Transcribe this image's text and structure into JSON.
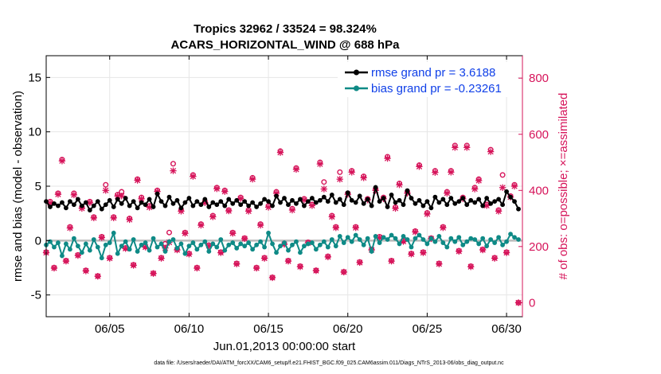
{
  "chart_data": {
    "type": "line",
    "title_line1": "Tropics 32962 / 33524 = 98.324%",
    "title_line2": "ACARS_HORIZONTAL_WIND @ 688 hPa",
    "xlabel": "Jun.01,2013 00:00:00 start",
    "ylabel_left": "rmse and bias (model - observation)",
    "ylabel_right": "# of obs: o=possible; ×=assimilated",
    "footnote": "data file: /Users/raeder/DAI/ATM_forcXX/CAM6_setup/f.e21.FHIST_BGC.f09_025.CAM6assim.011/Diags_NTrS_2013-06/obs_diag_output.nc",
    "x_range": [
      1.0,
      31.0
    ],
    "x_ticks": [
      5,
      10,
      15,
      20,
      25,
      30
    ],
    "x_tick_labels": [
      "06/05",
      "06/10",
      "06/15",
      "06/20",
      "06/25",
      "06/30"
    ],
    "ylim_left": [
      -7,
      17
    ],
    "y_ticks_left": [
      -5,
      0,
      5,
      10,
      15
    ],
    "ylim_right": [
      -50,
      880
    ],
    "y_ticks_right": [
      0,
      200,
      400,
      600,
      800
    ],
    "zero_line": 0,
    "legend_position": "top-right",
    "colors": {
      "rmse": "#000000",
      "bias": "#0e8a86",
      "obs": "#d6145a",
      "zero": "#bbbbbb",
      "grid": "#e6e6e6",
      "legend_text": "#1040e8"
    },
    "series": [
      {
        "name": "rmse grand pr = 3.6188",
        "key": "rmse",
        "x": [
          1.0,
          1.25,
          1.5,
          1.75,
          2.0,
          2.25,
          2.5,
          2.75,
          3.0,
          3.25,
          3.5,
          3.75,
          4.0,
          4.25,
          4.5,
          4.75,
          5.0,
          5.25,
          5.5,
          5.75,
          6.0,
          6.25,
          6.5,
          6.75,
          7.0,
          7.25,
          7.5,
          7.75,
          8.0,
          8.25,
          8.5,
          8.75,
          9.0,
          9.25,
          9.5,
          9.75,
          10.0,
          10.25,
          10.5,
          10.75,
          11.0,
          11.25,
          11.5,
          11.75,
          12.0,
          12.25,
          12.5,
          12.75,
          13.0,
          13.25,
          13.5,
          13.75,
          14.0,
          14.25,
          14.5,
          14.75,
          15.0,
          15.25,
          15.5,
          15.75,
          16.0,
          16.25,
          16.5,
          16.75,
          17.0,
          17.25,
          17.5,
          17.75,
          18.0,
          18.25,
          18.5,
          18.75,
          19.0,
          19.25,
          19.5,
          19.75,
          20.0,
          20.25,
          20.5,
          20.75,
          21.0,
          21.25,
          21.5,
          21.75,
          22.0,
          22.25,
          22.5,
          22.75,
          23.0,
          23.25,
          23.5,
          23.75,
          24.0,
          24.25,
          24.5,
          24.75,
          25.0,
          25.25,
          25.5,
          25.75,
          26.0,
          26.25,
          26.5,
          26.75,
          27.0,
          27.25,
          27.5,
          27.75,
          28.0,
          28.25,
          28.5,
          28.75,
          29.0,
          29.25,
          29.5,
          29.75,
          30.0,
          30.25,
          30.5,
          30.75
        ],
        "values": [
          3.6,
          3.1,
          3.4,
          3.2,
          3.5,
          3.0,
          3.6,
          3.3,
          3.8,
          3.2,
          3.5,
          2.8,
          3.2,
          3.6,
          2.9,
          3.3,
          3.7,
          3.1,
          3.8,
          3.4,
          3.9,
          3.2,
          3.6,
          3.0,
          3.5,
          3.3,
          3.8,
          3.1,
          4.3,
          3.6,
          3.2,
          4.0,
          3.4,
          3.7,
          3.0,
          3.5,
          3.9,
          3.2,
          3.6,
          3.3,
          3.8,
          3.1,
          3.5,
          3.3,
          3.6,
          3.2,
          3.8,
          3.4,
          3.7,
          3.3,
          3.6,
          3.2,
          3.5,
          3.1,
          3.4,
          3.8,
          3.6,
          3.2,
          4.1,
          3.5,
          3.9,
          3.3,
          3.7,
          3.4,
          3.8,
          3.2,
          3.6,
          3.9,
          3.5,
          3.7,
          4.0,
          3.6,
          4.2,
          3.5,
          3.8,
          3.3,
          4.4,
          3.7,
          3.5,
          4.1,
          3.4,
          3.8,
          3.2,
          4.9,
          3.6,
          3.9,
          3.1,
          4.2,
          3.5,
          3.7,
          3.3,
          4.6,
          3.9,
          3.4,
          3.7,
          3.2,
          3.6,
          3.0,
          4.0,
          3.5,
          3.8,
          3.3,
          3.9,
          3.4,
          3.6,
          3.9,
          3.3,
          3.7,
          3.5,
          3.8,
          3.2,
          3.9,
          3.4,
          3.6,
          3.8,
          3.3,
          4.5,
          4.0,
          3.6,
          2.9
        ]
      },
      {
        "name": "bias grand pr = -0.23261",
        "key": "bias",
        "x": [
          1.0,
          1.25,
          1.5,
          1.75,
          2.0,
          2.25,
          2.5,
          2.75,
          3.0,
          3.25,
          3.5,
          3.75,
          4.0,
          4.25,
          4.5,
          4.75,
          5.0,
          5.25,
          5.5,
          5.75,
          6.0,
          6.25,
          6.5,
          6.75,
          7.0,
          7.25,
          7.5,
          7.75,
          8.0,
          8.25,
          8.5,
          8.75,
          9.0,
          9.25,
          9.5,
          9.75,
          10.0,
          10.25,
          10.5,
          10.75,
          11.0,
          11.25,
          11.5,
          11.75,
          12.0,
          12.25,
          12.5,
          12.75,
          13.0,
          13.25,
          13.5,
          13.75,
          14.0,
          14.25,
          14.5,
          14.75,
          15.0,
          15.25,
          15.5,
          15.75,
          16.0,
          16.25,
          16.5,
          16.75,
          17.0,
          17.25,
          17.5,
          17.75,
          18.0,
          18.25,
          18.5,
          18.75,
          19.0,
          19.25,
          19.5,
          19.75,
          20.0,
          20.25,
          20.5,
          20.75,
          21.0,
          21.25,
          21.5,
          21.75,
          22.0,
          22.25,
          22.5,
          22.75,
          23.0,
          23.25,
          23.5,
          23.75,
          24.0,
          24.25,
          24.5,
          24.75,
          25.0,
          25.25,
          25.5,
          25.75,
          26.0,
          26.25,
          26.5,
          26.75,
          27.0,
          27.25,
          27.5,
          27.75,
          28.0,
          28.25,
          28.5,
          28.75,
          29.0,
          29.25,
          29.5,
          29.75,
          30.0,
          30.25,
          30.5,
          30.75
        ],
        "values": [
          -0.4,
          -0.1,
          -0.6,
          -0.2,
          -1.4,
          -0.3,
          -0.8,
          0.2,
          -0.5,
          -1.1,
          -0.3,
          -0.9,
          0.1,
          -0.6,
          -1.6,
          -0.4,
          -0.2,
          0.7,
          -1.2,
          -0.5,
          -0.1,
          -0.8,
          0.1,
          -1.0,
          -0.4,
          -0.2,
          -0.9,
          0.2,
          -0.6,
          -0.3,
          -1.0,
          -0.1,
          0.1,
          -0.7,
          -0.3,
          -1.2,
          -0.5,
          -0.2,
          -0.8,
          -0.4,
          -0.1,
          -1.0,
          -0.3,
          -0.6,
          0.1,
          -0.9,
          -0.4,
          -0.2,
          -0.7,
          -0.3,
          -0.5,
          -0.2,
          -0.8,
          -0.4,
          -0.1,
          -0.6,
          0.7,
          -0.3,
          -1.1,
          -0.5,
          -0.2,
          -0.9,
          -0.4,
          -0.1,
          -1.1,
          -0.5,
          -0.3,
          -0.2,
          -0.8,
          -0.4,
          -0.1,
          -0.6,
          0.1,
          -0.5,
          0.4,
          -0.2,
          0.3,
          -0.1,
          0.5,
          0.1,
          -0.4,
          0.2,
          -1.0,
          0.4,
          -0.2,
          0.3,
          0.1,
          0.5,
          0.2,
          -0.3,
          0.4,
          0.1,
          -0.6,
          0.2,
          0.5,
          0.1,
          -0.3,
          0.2,
          -0.1,
          0.4,
          -0.2,
          -0.6,
          0.2,
          -0.1,
          0.3,
          -0.4,
          -0.1,
          0.2,
          0.1,
          -0.3,
          0.2,
          -0.5,
          0.1,
          -0.2,
          0.3,
          -0.4,
          -0.1,
          0.6,
          0.3,
          0.1
        ]
      },
      {
        "name": "possible",
        "key": "obs_possible",
        "x": [
          1.0,
          1.25,
          1.5,
          1.75,
          2.0,
          2.25,
          2.5,
          2.75,
          3.0,
          3.25,
          3.5,
          3.75,
          4.0,
          4.25,
          4.5,
          4.75,
          5.0,
          5.25,
          5.5,
          5.75,
          6.0,
          6.25,
          6.5,
          6.75,
          7.0,
          7.25,
          7.5,
          7.75,
          8.0,
          8.25,
          8.5,
          8.75,
          9.0,
          9.25,
          9.5,
          9.75,
          10.0,
          10.25,
          10.5,
          10.75,
          11.0,
          11.25,
          11.5,
          11.75,
          12.0,
          12.25,
          12.5,
          12.75,
          13.0,
          13.25,
          13.5,
          13.75,
          14.0,
          14.25,
          14.5,
          14.75,
          15.0,
          15.25,
          15.5,
          15.75,
          16.0,
          16.25,
          16.5,
          16.75,
          17.0,
          17.25,
          17.5,
          17.75,
          18.0,
          18.25,
          18.5,
          18.75,
          19.0,
          19.25,
          19.5,
          19.75,
          20.0,
          20.25,
          20.5,
          20.75,
          21.0,
          21.25,
          21.5,
          21.75,
          22.0,
          22.25,
          22.5,
          22.75,
          23.0,
          23.25,
          23.5,
          23.75,
          24.0,
          24.25,
          24.5,
          24.75,
          25.0,
          25.25,
          25.5,
          25.75,
          26.0,
          26.25,
          26.5,
          26.75,
          27.0,
          27.25,
          27.5,
          27.75,
          28.0,
          28.25,
          28.5,
          28.75,
          29.0,
          29.25,
          29.5,
          29.75,
          30.0,
          30.25,
          30.5,
          30.75
        ],
        "values": [
          180,
          360,
          125,
          390,
          510,
          150,
          270,
          390,
          170,
          340,
          115,
          360,
          305,
          95,
          235,
          420,
          160,
          305,
          385,
          395,
          195,
          300,
          135,
          440,
          375,
          200,
          345,
          105,
          400,
          160,
          210,
          250,
          495,
          190,
          330,
          250,
          175,
          455,
          125,
          280,
          360,
          205,
          310,
          410,
          180,
          400,
          330,
          250,
          140,
          375,
          230,
          330,
          445,
          125,
          280,
          160,
          345,
          90,
          395,
          540,
          210,
          150,
          335,
          480,
          130,
          370,
          215,
          350,
          115,
          500,
          430,
          165,
          310,
          270,
          465,
          110,
          390,
          470,
          270,
          145,
          450,
          370,
          190,
          405,
          235,
          375,
          520,
          150,
          340,
          425,
          220,
          395,
          175,
          255,
          490,
          180,
          320,
          230,
          470,
          140,
          270,
          395,
          470,
          560,
          185,
          375,
          560,
          130,
          410,
          440,
          190,
          350,
          545,
          160,
          330,
          455,
          180,
          380,
          420,
          0
        ]
      },
      {
        "name": "assimilated",
        "key": "obs_assimilated",
        "x": [
          1.0,
          1.25,
          1.5,
          1.75,
          2.0,
          2.25,
          2.5,
          2.75,
          3.0,
          3.25,
          3.5,
          3.75,
          4.0,
          4.25,
          4.5,
          4.75,
          5.0,
          5.25,
          5.5,
          5.75,
          6.0,
          6.25,
          6.5,
          6.75,
          7.0,
          7.25,
          7.5,
          7.75,
          8.0,
          8.25,
          8.5,
          8.75,
          9.0,
          9.25,
          9.5,
          9.75,
          10.0,
          10.25,
          10.5,
          10.75,
          11.0,
          11.25,
          11.5,
          11.75,
          12.0,
          12.25,
          12.5,
          12.75,
          13.0,
          13.25,
          13.5,
          13.75,
          14.0,
          14.25,
          14.5,
          14.75,
          15.0,
          15.25,
          15.5,
          15.75,
          16.0,
          16.25,
          16.5,
          16.75,
          17.0,
          17.25,
          17.5,
          17.75,
          18.0,
          18.25,
          18.5,
          18.75,
          19.0,
          19.25,
          19.5,
          19.75,
          20.0,
          20.25,
          20.5,
          20.75,
          21.0,
          21.25,
          21.5,
          21.75,
          22.0,
          22.25,
          22.5,
          22.75,
          23.0,
          23.25,
          23.5,
          23.75,
          24.0,
          24.25,
          24.5,
          24.75,
          25.0,
          25.25,
          25.5,
          25.75,
          26.0,
          26.25,
          26.5,
          26.75,
          27.0,
          27.25,
          27.5,
          27.75,
          28.0,
          28.25,
          28.5,
          28.75,
          29.0,
          29.25,
          29.5,
          29.75,
          30.0,
          30.25,
          30.5,
          30.75
        ],
        "values": [
          178,
          355,
          123,
          386,
          505,
          148,
          266,
          384,
          168,
          336,
          113,
          356,
          302,
          94,
          232,
          400,
          158,
          302,
          380,
          380,
          193,
          296,
          133,
          436,
          370,
          198,
          340,
          104,
          396,
          158,
          195,
          215,
          470,
          188,
          326,
          247,
          173,
          450,
          123,
          276,
          356,
          203,
          306,
          406,
          178,
          396,
          327,
          247,
          138,
          371,
          228,
          326,
          440,
          123,
          276,
          158,
          340,
          89,
          390,
          535,
          208,
          148,
          330,
          475,
          128,
          366,
          213,
          346,
          114,
          494,
          405,
          163,
          306,
          267,
          440,
          109,
          386,
          465,
          267,
          143,
          445,
          366,
          188,
          400,
          232,
          370,
          514,
          148,
          336,
          420,
          218,
          390,
          173,
          252,
          485,
          178,
          316,
          228,
          464,
          138,
          267,
          390,
          465,
          553,
          183,
          370,
          553,
          128,
          405,
          435,
          188,
          346,
          538,
          158,
          326,
          410,
          178,
          376,
          415,
          0
        ]
      }
    ]
  }
}
